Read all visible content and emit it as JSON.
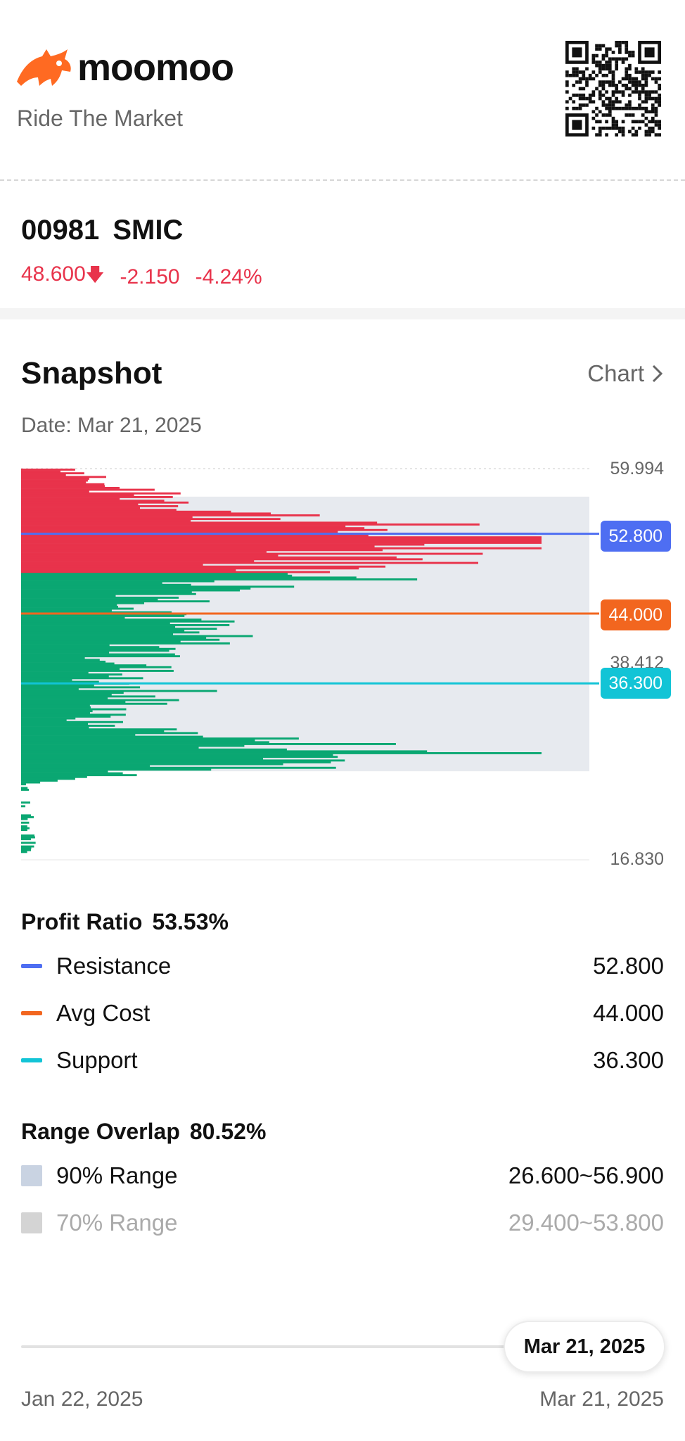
{
  "brand": {
    "name": "moomoo",
    "tagline": "Ride The Market"
  },
  "quote": {
    "code": "00981",
    "name": "SMIC",
    "price": "48.600",
    "change": "-2.150",
    "change_pct": "-4.24%",
    "direction_icon": "arrow-down-icon",
    "down_color": "#e8334b"
  },
  "snapshot": {
    "title": "Snapshot",
    "chart_link": "Chart",
    "date_label": "Date: Mar 21, 2025"
  },
  "chart_data": {
    "type": "bar",
    "orientation": "horizontal",
    "y_axis_labels": [
      "59.994",
      "38.412",
      "16.830"
    ],
    "ylim": [
      16.83,
      59.994
    ],
    "reference_lines": [
      {
        "name": "Resistance",
        "value": 52.8,
        "label": "52.800",
        "color": "#4e6ef2"
      },
      {
        "name": "Avg Cost",
        "value": 44.0,
        "label": "44.000",
        "color": "#f2661f"
      },
      {
        "name": "Support",
        "value": 36.3,
        "label": "36.300",
        "color": "#12c4d6"
      }
    ],
    "shaded_range": [
      26.6,
      56.9
    ],
    "profit_color": "#e8334b",
    "loss_color": "#0aa772",
    "range_color": "#e7eaef",
    "price_split": 48.6
  },
  "profit_ratio": {
    "label": "Profit Ratio",
    "value": "53.53%",
    "items": [
      {
        "label": "Resistance",
        "value": "52.800",
        "color": "#4e6ef2"
      },
      {
        "label": "Avg Cost",
        "value": "44.000",
        "color": "#f2661f"
      },
      {
        "label": "Support",
        "value": "36.300",
        "color": "#12c4d6"
      }
    ]
  },
  "range_overlap": {
    "label": "Range Overlap",
    "value": "80.52%",
    "items": [
      {
        "label": "90% Range",
        "value": "26.600~56.900",
        "color": "#c9d3e2"
      },
      {
        "label": "70% Range",
        "value": "29.400~53.800",
        "color": "#d4d4d4"
      }
    ]
  },
  "timeline": {
    "selected": "Mar 21, 2025",
    "start": "Jan 22, 2025",
    "end": "Mar 21, 2025"
  }
}
